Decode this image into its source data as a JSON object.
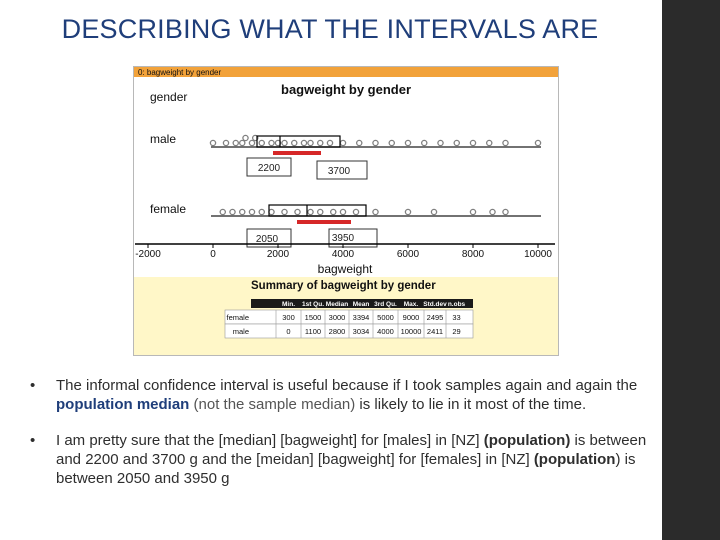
{
  "slide": {
    "title": "DESCRIBING WHAT THE INTERVALS ARE",
    "sidebar_color": "#2b2b2b",
    "title_color": "#1f3e7a"
  },
  "figure": {
    "window_title": "0: bagweight by gender",
    "plot_title": "bagweight by gender",
    "var_label": "gender",
    "groups": [
      "male",
      "female"
    ],
    "male_dots": [
      0,
      400,
      700,
      900,
      1000,
      1200,
      1300,
      1500,
      1800,
      2000,
      2200,
      2500,
      2800,
      3000,
      3300,
      3600,
      4000,
      4500,
      5000,
      5500,
      6000,
      6500,
      7000,
      7500,
      8000,
      8500,
      9000,
      10000
    ],
    "female_dots": [
      300,
      600,
      900,
      1200,
      1500,
      1800,
      2200,
      2600,
      3000,
      3300,
      3700,
      4000,
      4400,
      5000,
      6000,
      6800,
      8000,
      8600,
      9000
    ],
    "x_ticks": [
      "-2000",
      "0",
      "2000",
      "4000",
      "6000",
      "8000",
      "10000"
    ],
    "x_label": "bagweight",
    "callouts": {
      "male_low": "2200",
      "male_high": "3700",
      "female_low": "2050",
      "female_high": "3950"
    },
    "summary": {
      "title": "Summary of bagweight by gender",
      "headers": [
        "Min.",
        "1st Qu.",
        "Median",
        "Mean",
        "3rd Qu.",
        "Max.",
        "Std.dev",
        "n.obs"
      ],
      "rows": [
        {
          "label": "female",
          "values": [
            "300",
            "1500",
            "3000",
            "3394",
            "5000",
            "9000",
            "2495",
            "33"
          ]
        },
        {
          "label": "male",
          "values": [
            "0",
            "1100",
            "2800",
            "3034",
            "4000",
            "10000",
            "2411",
            "29"
          ]
        }
      ]
    },
    "colors": {
      "interval": "#d62728",
      "box": "#000000",
      "window_bar": "#f2a23a",
      "summary_bg": "#fff7c8",
      "dot": "#808080"
    }
  },
  "bullets": [
    {
      "t1": "The informal confidence interval is useful because if I took samples again and again the ",
      "t2": "population median",
      "t3": " (not the sample median)",
      "t4": " is likely to lie in it most of the time."
    },
    {
      "t1": "I am pretty sure that the [median] [bagweight] for [males] in [NZ] ",
      "t2": "(population)",
      "t3": " is between and 2200 and 3700 g and the [meidan] [bagweight] for [females] in [NZ] ",
      "t4": "(population",
      "t5": ") is between 2050 and 3950 g"
    }
  ],
  "bullet_symbol": "•"
}
